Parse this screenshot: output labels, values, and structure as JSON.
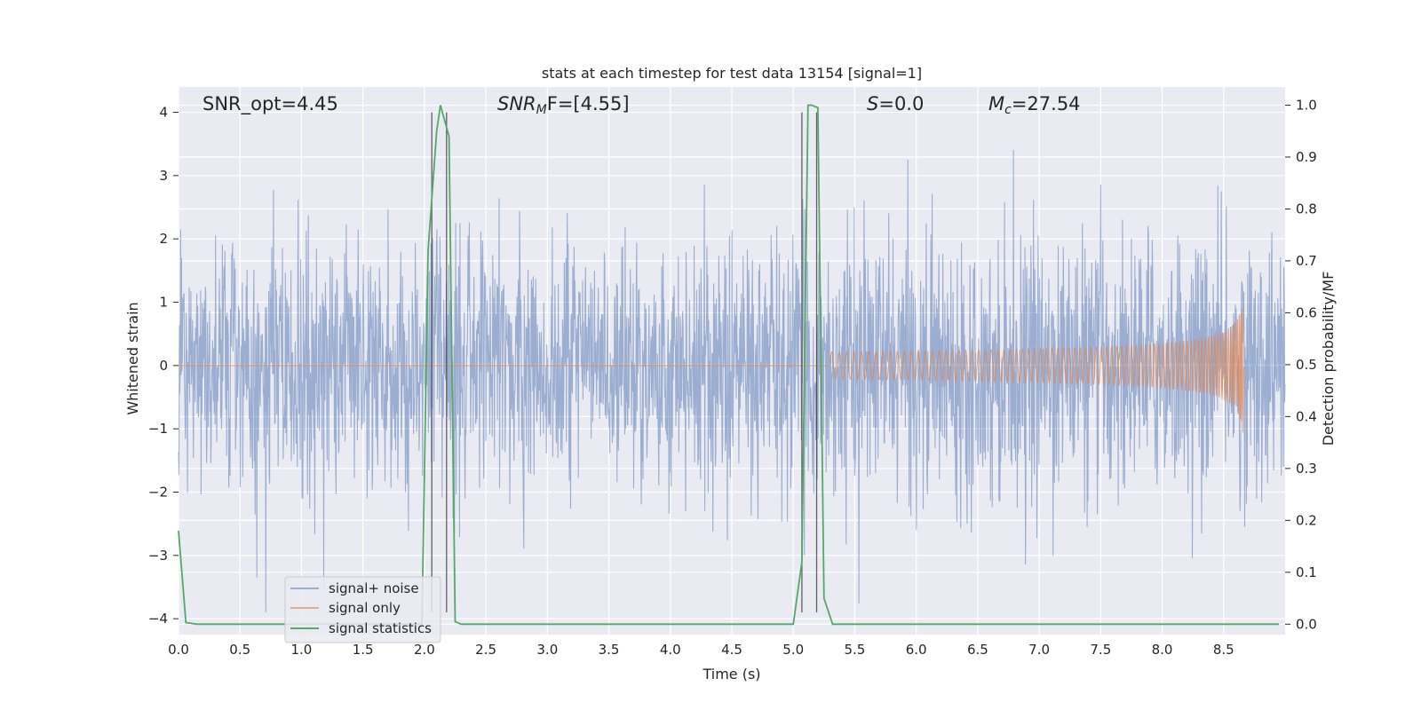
{
  "chart_data": {
    "type": "line",
    "title": "stats at each timestep for test data 13154 [signal=1]",
    "xlabel": "Time (s)",
    "ylabel_left": "Whitened strain",
    "ylabel_right": "Detection probability/MF",
    "xlim": [
      0,
      9.0
    ],
    "ylim_left": [
      -4.25,
      4.4
    ],
    "ylim_right": [
      -0.02,
      1.035
    ],
    "x_ticks": [
      0.0,
      0.5,
      1.0,
      1.5,
      2.0,
      2.5,
      3.0,
      3.5,
      4.0,
      4.5,
      5.0,
      5.5,
      6.0,
      6.5,
      7.0,
      7.5,
      8.0,
      8.5
    ],
    "x_tick_labels": [
      "0.0",
      "0.5",
      "1.0",
      "1.5",
      "2.0",
      "2.5",
      "3.0",
      "3.5",
      "4.0",
      "4.5",
      "5.0",
      "5.5",
      "6.0",
      "6.5",
      "7.0",
      "7.5",
      "8.0",
      "8.5"
    ],
    "y_left_ticks": [
      -4,
      -3,
      -2,
      -1,
      0,
      1,
      2,
      3,
      4
    ],
    "y_left_tick_labels": [
      "−4",
      "−3",
      "−2",
      "−1",
      "0",
      "1",
      "2",
      "3",
      "4"
    ],
    "y_right_ticks": [
      0.0,
      0.1,
      0.2,
      0.3,
      0.4,
      0.5,
      0.6,
      0.7,
      0.8,
      0.9,
      1.0
    ],
    "y_right_tick_labels": [
      "0.0",
      "0.1",
      "0.2",
      "0.3",
      "0.4",
      "0.5",
      "0.6",
      "0.7",
      "0.8",
      "0.9",
      "1.0"
    ],
    "grid": true,
    "legend_position": "bottom-left",
    "annotations": {
      "snr_opt": "SNR_opt=4.45",
      "snr_mf_main": "SNR",
      "snr_mf_sub": "M",
      "snr_mf_rest": "F=[4.55]",
      "s_main": "S",
      "s_rest": "=0.0",
      "mc_main": "M",
      "mc_sub": "c",
      "mc_rest": "=27.54"
    },
    "vertical_lines_x": [
      2.06,
      2.18,
      5.07,
      5.19
    ],
    "series": [
      {
        "name": "signal+ noise",
        "color": "#4c72b0",
        "kind": "noise",
        "x_range": [
          0,
          9.0
        ],
        "typical_range": [
          -1.6,
          1.6
        ],
        "peak_range": [
          -3.9,
          4.0
        ]
      },
      {
        "name": "signal only",
        "color": "#dd8452",
        "kind": "chirp",
        "x_range": [
          5.3,
          8.66
        ],
        "peak_amplitude": 1.1,
        "peak_x": 8.66
      },
      {
        "name": "signal statistics",
        "color": "#55a868",
        "axis": "right",
        "x": [
          0.0,
          0.06,
          0.15,
          1.8,
          1.98,
          2.03,
          2.1,
          2.13,
          2.2,
          2.25,
          2.3,
          4.5,
          5.0,
          5.07,
          5.12,
          5.15,
          5.2,
          5.25,
          5.32,
          6.0,
          8.95
        ],
        "y": [
          0.18,
          0.003,
          0.0,
          0.0,
          0.0,
          0.72,
          0.95,
          1.0,
          0.94,
          0.005,
          0.0,
          0.0,
          0.0,
          0.12,
          1.0,
          1.0,
          0.995,
          0.05,
          0.0,
          0.0,
          0.0
        ]
      }
    ]
  }
}
